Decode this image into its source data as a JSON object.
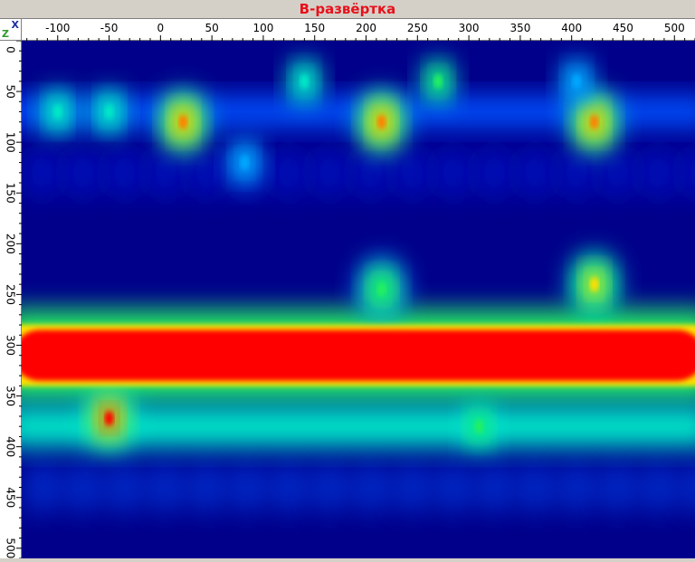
{
  "window": {
    "title": "B-развёртка",
    "title_color": "#e8101a"
  },
  "axes": {
    "x_letter": "X",
    "z_letter": "Z"
  },
  "chart_data": {
    "type": "heatmap",
    "title": "B-развёртка",
    "x_axis": {
      "label": "X",
      "min": -135,
      "max": 520,
      "ticks": [
        -100,
        -50,
        0,
        50,
        100,
        150,
        200,
        250,
        300,
        350,
        400,
        450,
        500
      ]
    },
    "z_axis": {
      "label": "Z",
      "min": 0,
      "max": 510,
      "ticks": [
        0,
        50,
        100,
        150,
        200,
        250,
        300,
        350,
        400,
        450,
        500
      ],
      "inverted": true
    },
    "colormap": [
      "#00008a",
      "#0012d6",
      "#0050ff",
      "#00a8ff",
      "#00e8c8",
      "#20f060",
      "#b8f000",
      "#ffe000",
      "#ff8000",
      "#ff0000"
    ],
    "features": [
      {
        "kind": "saturated-band",
        "x_range": [
          -135,
          520
        ],
        "z_range": [
          285,
          335
        ],
        "level": 1.0
      },
      {
        "kind": "band",
        "x_range": [
          -135,
          520
        ],
        "z_range": [
          265,
          355
        ],
        "level": 0.55
      },
      {
        "kind": "band",
        "x_range": [
          -135,
          520
        ],
        "z_range": [
          360,
          400
        ],
        "level": 0.4
      },
      {
        "kind": "band",
        "x_range": [
          -135,
          520
        ],
        "z_range": [
          55,
          85
        ],
        "level": 0.25
      },
      {
        "kind": "spot",
        "x": 22,
        "z": 80,
        "level": 0.85
      },
      {
        "kind": "spot",
        "x": 215,
        "z": 80,
        "level": 0.85
      },
      {
        "kind": "spot",
        "x": 422,
        "z": 80,
        "level": 0.85
      },
      {
        "kind": "spot",
        "x": 215,
        "z": 245,
        "level": 0.6
      },
      {
        "kind": "spot",
        "x": 422,
        "z": 240,
        "level": 0.75
      },
      {
        "kind": "spot",
        "x": -50,
        "z": 372,
        "level": 0.95
      },
      {
        "kind": "spot",
        "x": 310,
        "z": 380,
        "level": 0.5
      },
      {
        "kind": "spot",
        "x": -100,
        "z": 70,
        "level": 0.4
      },
      {
        "kind": "spot",
        "x": -50,
        "z": 70,
        "level": 0.4
      },
      {
        "kind": "spot",
        "x": 140,
        "z": 40,
        "level": 0.45
      },
      {
        "kind": "spot",
        "x": 270,
        "z": 40,
        "level": 0.5
      },
      {
        "kind": "spot",
        "x": 405,
        "z": 40,
        "level": 0.35
      },
      {
        "kind": "spot",
        "x": 82,
        "z": 120,
        "level": 0.35
      }
    ]
  }
}
